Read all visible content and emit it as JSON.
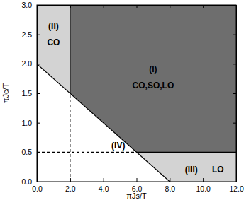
{
  "chart_data": {
    "type": "area",
    "x_label": "πJs/T",
    "y_label": "πJc/T",
    "xlim": [
      0,
      12
    ],
    "ylim": [
      0,
      3
    ],
    "xticks": [
      {
        "value": 0,
        "label": "0.0"
      },
      {
        "value": 2,
        "label": "2.0"
      },
      {
        "value": 4,
        "label": "4.0"
      },
      {
        "value": 6,
        "label": "6.0"
      },
      {
        "value": 8,
        "label": "8.0"
      },
      {
        "value": 10,
        "label": "10.0"
      },
      {
        "value": 12,
        "label": "12.0"
      }
    ],
    "yticks": [
      {
        "value": 0,
        "label": "0.0"
      },
      {
        "value": 0.5,
        "label": "0.5"
      },
      {
        "value": 1,
        "label": "1.0"
      },
      {
        "value": 1.5,
        "label": "1.5"
      },
      {
        "value": 2,
        "label": "2.0"
      },
      {
        "value": 2.5,
        "label": "2.5"
      },
      {
        "value": 3,
        "label": "3.0"
      }
    ],
    "grid": false,
    "series": [
      {
        "type": "area",
        "color": "#6e6e6e",
        "x": [
          2,
          2,
          6,
          12,
          12
        ],
        "y": [
          3,
          1.5,
          0.5,
          0.5,
          3
        ]
      },
      {
        "type": "area",
        "color": "#d3d3d3",
        "x": [
          0,
          0,
          2,
          2
        ],
        "y": [
          3,
          2,
          1.5,
          3
        ]
      },
      {
        "type": "area",
        "color": "#d3d3d3",
        "x": [
          6,
          8,
          12,
          12
        ],
        "y": [
          0.5,
          0,
          0,
          0.5
        ]
      },
      {
        "type": "line",
        "color": "#000000",
        "line_style": "solid",
        "x": [
          0,
          8
        ],
        "y": [
          2,
          0
        ]
      },
      {
        "type": "line",
        "color": "#000000",
        "line_style": "solid",
        "x": [
          2,
          2
        ],
        "y": [
          1.5,
          3
        ]
      },
      {
        "type": "line",
        "color": "#000000",
        "line_style": "solid",
        "x": [
          6,
          12
        ],
        "y": [
          0.5,
          0.5
        ]
      },
      {
        "type": "line",
        "color": "#000000",
        "line_style": "dashed",
        "x": [
          2,
          2
        ],
        "y": [
          0,
          1.5
        ]
      },
      {
        "type": "line",
        "color": "#000000",
        "line_style": "dashed",
        "x": [
          0,
          6
        ],
        "y": [
          0.5,
          0.5
        ]
      }
    ],
    "annotations": [
      {
        "text": "(I)",
        "x": 7,
        "y": 1.9
      },
      {
        "text": "CO,SO,LO",
        "x": 7,
        "y": 1.62
      },
      {
        "text": "(II)",
        "x": 1,
        "y": 2.63
      },
      {
        "text": "CO",
        "x": 1,
        "y": 2.35
      },
      {
        "text": "(III)",
        "x": 9.3,
        "y": 0.2
      },
      {
        "text": "LO",
        "x": 10.9,
        "y": 0.2
      },
      {
        "text": "(IV)",
        "x": 4.9,
        "y": 0.6
      }
    ]
  }
}
